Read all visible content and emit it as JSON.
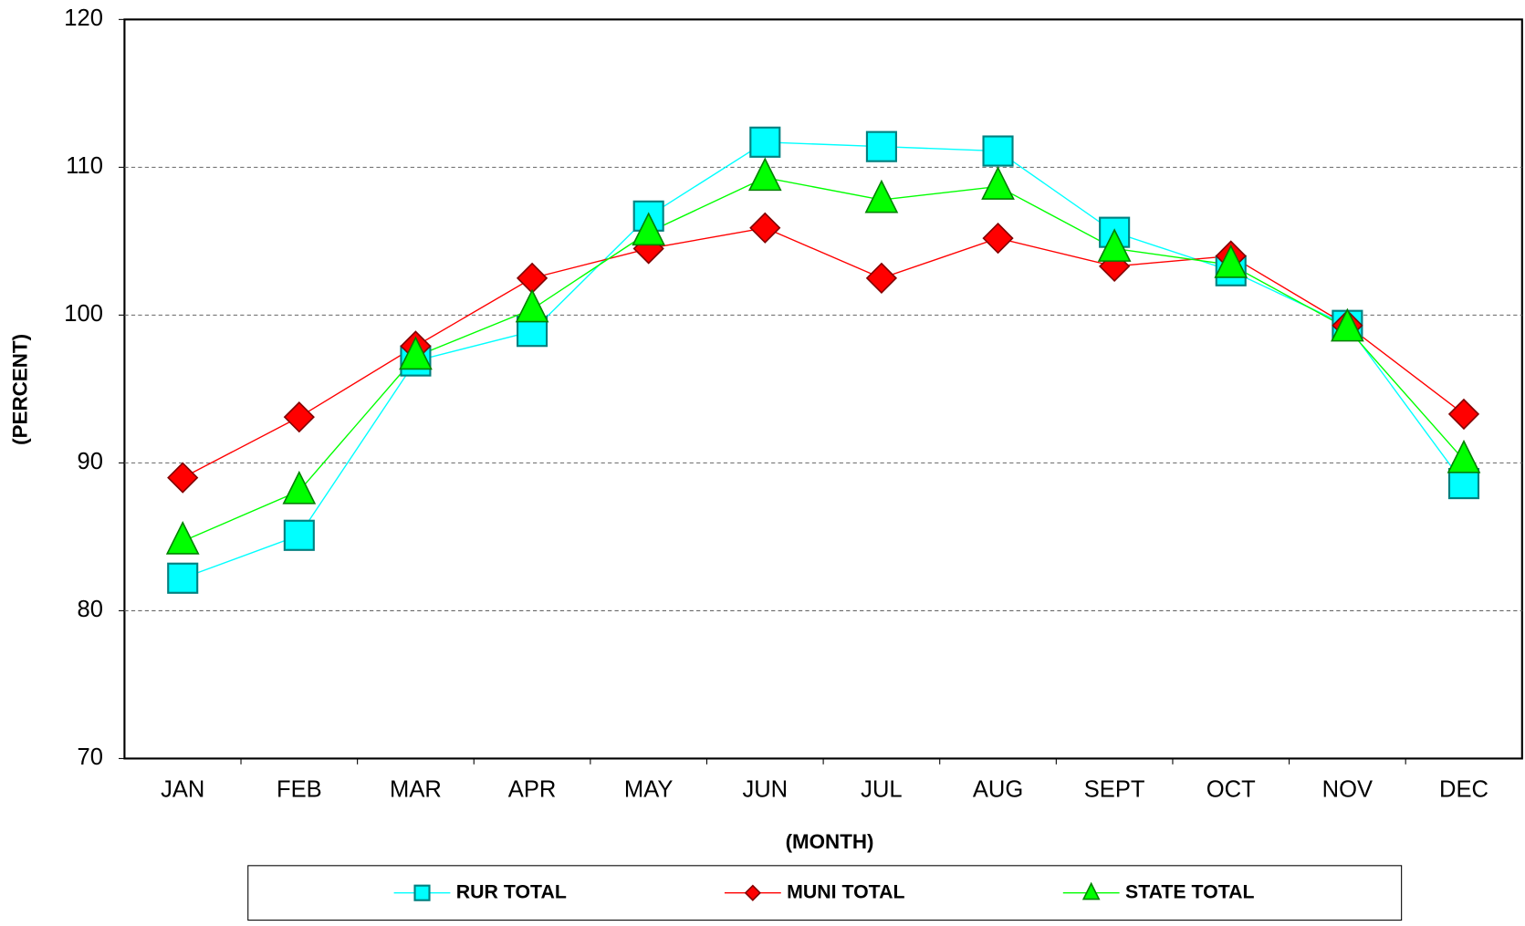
{
  "chart_data": {
    "type": "line",
    "x_label": "(MONTH)",
    "y_label": "(PERCENT)",
    "categories": [
      "JAN",
      "FEB",
      "MAR",
      "APR",
      "MAY",
      "JUN",
      "JUL",
      "AUG",
      "SEPT",
      "OCT",
      "NOV",
      "DEC"
    ],
    "series": [
      {
        "name": "RUR TOTAL",
        "color": "#00ffff",
        "marker": "square",
        "values": [
          82.2,
          85.1,
          96.9,
          98.9,
          106.7,
          111.7,
          111.4,
          111.1,
          105.6,
          103.0,
          99.3,
          88.6
        ]
      },
      {
        "name": "MUNI TOTAL",
        "color": "#ff0000",
        "marker": "diamond",
        "values": [
          89.0,
          93.1,
          97.9,
          102.5,
          104.5,
          105.9,
          102.5,
          105.2,
          103.3,
          104.0,
          99.3,
          93.3
        ]
      },
      {
        "name": "STATE TOTAL",
        "color": "#00ff00",
        "marker": "triangle",
        "values": [
          84.7,
          88.1,
          97.2,
          100.4,
          105.6,
          109.3,
          107.8,
          108.7,
          104.5,
          103.4,
          99.1,
          90.2
        ]
      }
    ],
    "ylim": [
      70,
      120
    ],
    "yticks": [
      70,
      80,
      90,
      100,
      110,
      120
    ],
    "grid": true,
    "legend": "bottom"
  }
}
